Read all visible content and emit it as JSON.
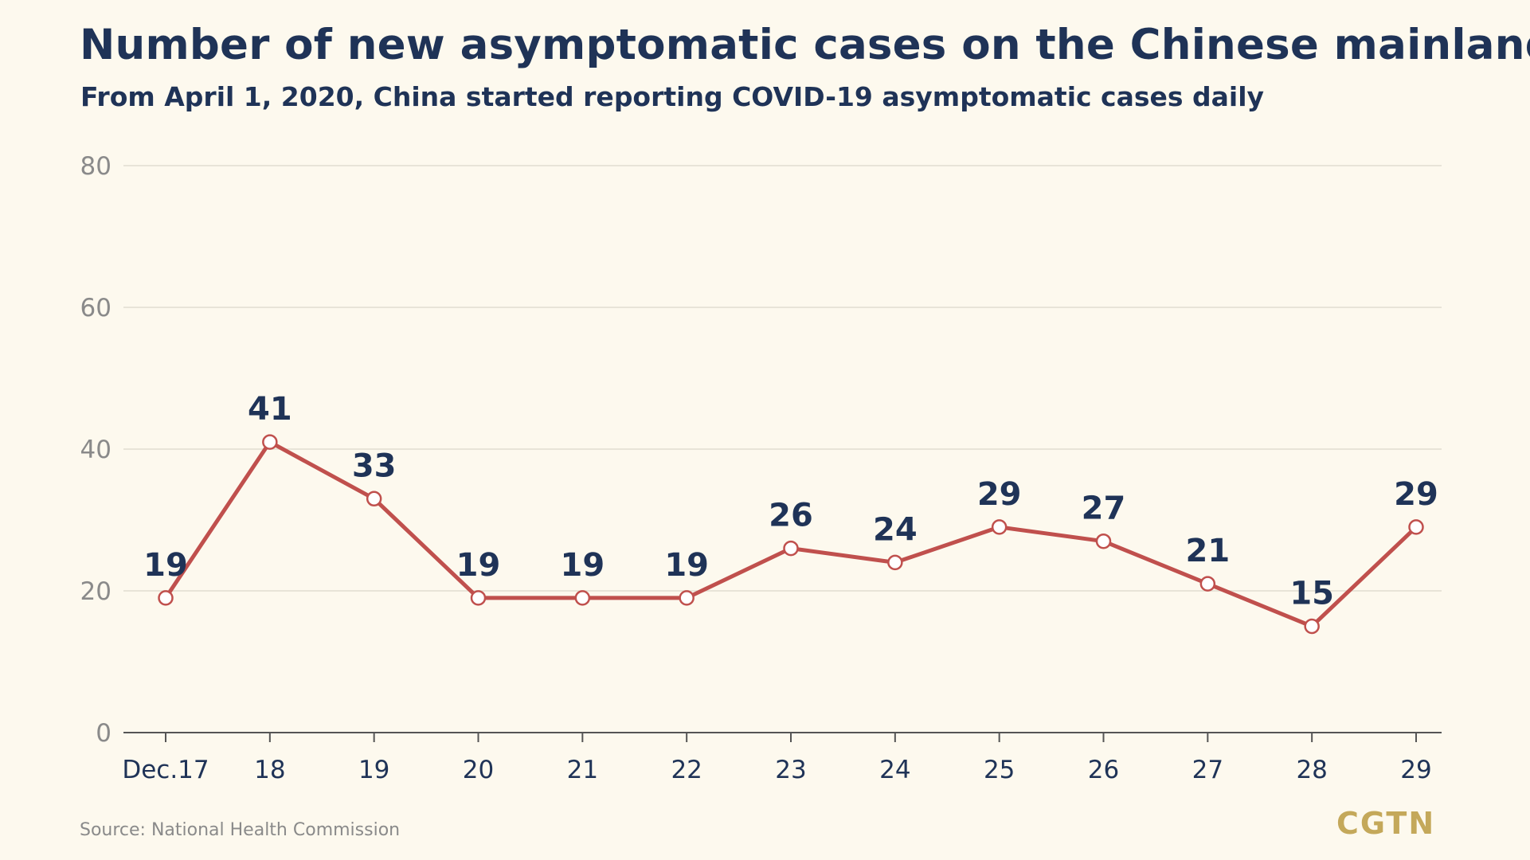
{
  "title": "Number of new asymptomatic cases on the Chinese mainland",
  "subtitle": "From April 1, 2020, China started reporting COVID-19 asymptomatic cases daily",
  "source": "Source: National Health Commission",
  "brand": "CGTN",
  "colors": {
    "background": "#fdf9ee",
    "line": "#c0504d",
    "title": "#1f3357",
    "axis_tick": "#8a8a8a",
    "gridline": "#e2ddd0",
    "brand": "#c4a85a"
  },
  "chart_data": {
    "type": "line",
    "title": "Number of new asymptomatic cases on the Chinese mainland",
    "subtitle": "From April 1, 2020, China started reporting COVID-19 asymptomatic cases daily",
    "xlabel": "",
    "ylabel": "",
    "categories": [
      "Dec.17",
      "18",
      "19",
      "20",
      "21",
      "22",
      "23",
      "24",
      "25",
      "26",
      "27",
      "28",
      "29"
    ],
    "series": [
      {
        "values": [
          19,
          41,
          33,
          19,
          19,
          19,
          26,
          24,
          29,
          27,
          21,
          15,
          29
        ]
      }
    ],
    "yticks": [
      0,
      20,
      40,
      60,
      80
    ],
    "ylim": [
      0,
      80
    ],
    "grid": true,
    "legend": "none",
    "data_labels": true
  }
}
